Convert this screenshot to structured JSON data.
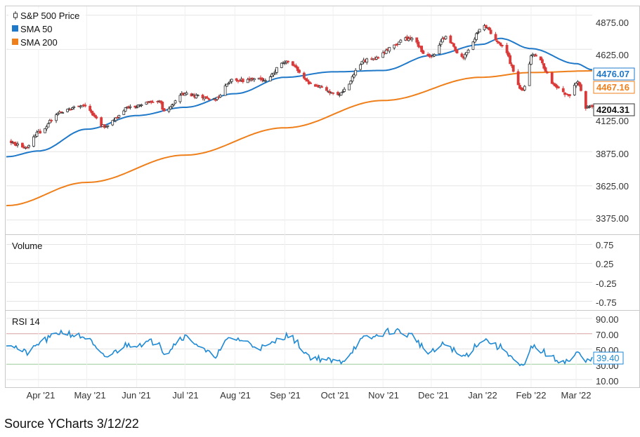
{
  "caption": "Source YCharts 3/12/22",
  "colors": {
    "up": "#ffffff",
    "down": "#d93b3b",
    "sma50": "#1f78c8",
    "sma200": "#ef7f1a",
    "rsi": "#1f8ad4",
    "grid": "#e4e4e4",
    "rsi_upper": "#d9a0a0",
    "rsi_lower": "#9ccc9c"
  },
  "chart_data": [
    {
      "type": "line",
      "panel": "price",
      "legend": {
        "placement": "top-left",
        "items": [
          {
            "label": "S&P 500 Price",
            "icon": "candlestick-icon"
          },
          {
            "label": "SMA 50",
            "color": "#1f78c8"
          },
          {
            "label": "SMA 200",
            "color": "#ef7f1a"
          }
        ]
      },
      "x_ticks": [
        "Apr '21",
        "May '21",
        "Jun '21",
        "Jul '21",
        "Aug '21",
        "Sep '21",
        "Oct '21",
        "Nov '21",
        "Dec '21",
        "Jan '22",
        "Feb '22",
        "Mar '22"
      ],
      "y_ticks": [
        "4875.00",
        "4625.00",
        "4125.00",
        "3875.00",
        "3625.00",
        "3375.00"
      ],
      "ylim": [
        3270,
        4940
      ],
      "price_anchors": [
        [
          "2021-03-12",
          3943
        ],
        [
          "2021-03-25",
          3909
        ],
        [
          "2021-04-01",
          4019
        ],
        [
          "2021-04-15",
          4170
        ],
        [
          "2021-04-29",
          4211
        ],
        [
          "2021-05-12",
          4063
        ],
        [
          "2021-05-28",
          4204
        ],
        [
          "2021-06-15",
          4246
        ],
        [
          "2021-06-18",
          4166
        ],
        [
          "2021-06-30",
          4297
        ],
        [
          "2021-07-19",
          4258
        ],
        [
          "2021-07-30",
          4395
        ],
        [
          "2021-08-19",
          4405
        ],
        [
          "2021-09-02",
          4537
        ],
        [
          "2021-09-20",
          4358
        ],
        [
          "2021-10-04",
          4300
        ],
        [
          "2021-10-22",
          4545
        ],
        [
          "2021-11-18",
          4704
        ],
        [
          "2021-11-30",
          4567
        ],
        [
          "2021-12-10",
          4712
        ],
        [
          "2021-12-20",
          4568
        ],
        [
          "2022-01-03",
          4796
        ],
        [
          "2022-01-13",
          4659
        ],
        [
          "2022-01-27",
          4327
        ],
        [
          "2022-02-02",
          4589
        ],
        [
          "2022-02-18",
          4349
        ],
        [
          "2022-02-24",
          4288
        ],
        [
          "2022-03-02",
          4386
        ],
        [
          "2022-03-07",
          4201
        ],
        [
          "2022-03-11",
          4204
        ]
      ],
      "sma50": [
        [
          "2021-03-12",
          3838
        ],
        [
          "2021-04-01",
          3880
        ],
        [
          "2021-05-01",
          4040
        ],
        [
          "2021-06-01",
          4140
        ],
        [
          "2021-07-01",
          4200
        ],
        [
          "2021-08-01",
          4300
        ],
        [
          "2021-09-01",
          4420
        ],
        [
          "2021-10-01",
          4460
        ],
        [
          "2021-11-01",
          4470
        ],
        [
          "2021-12-01",
          4580
        ],
        [
          "2022-01-01",
          4660
        ],
        [
          "2022-01-13",
          4705
        ],
        [
          "2022-02-01",
          4630
        ],
        [
          "2022-03-01",
          4520
        ],
        [
          "2022-03-11",
          4476.07
        ]
      ],
      "sma200": [
        [
          "2021-03-12",
          3480
        ],
        [
          "2021-05-01",
          3650
        ],
        [
          "2021-07-01",
          3850
        ],
        [
          "2021-09-01",
          4050
        ],
        [
          "2021-11-01",
          4250
        ],
        [
          "2022-01-01",
          4420
        ],
        [
          "2022-02-01",
          4455
        ],
        [
          "2022-03-11",
          4467.16
        ]
      ],
      "last_values": {
        "price": "4204.31",
        "sma50": "4476.07",
        "sma200": "4467.16"
      }
    },
    {
      "type": "bar",
      "panel": "volume",
      "title": "Volume",
      "y_ticks": [
        "0.75",
        "0.25",
        "-0.25",
        "-0.75"
      ],
      "ylim": [
        -1,
        1
      ],
      "values": []
    },
    {
      "type": "line",
      "panel": "rsi",
      "title": "RSI 14",
      "y_ticks": [
        "90.00",
        "70.00",
        "50.00",
        "30.00",
        "10.00"
      ],
      "ylim": [
        0,
        100
      ],
      "bands": [
        70,
        30
      ],
      "last_value": "39.40",
      "anchors": [
        [
          "2021-03-12",
          58
        ],
        [
          "2021-03-25",
          45
        ],
        [
          "2021-04-05",
          62
        ],
        [
          "2021-04-15",
          72
        ],
        [
          "2021-04-29",
          66
        ],
        [
          "2021-05-12",
          40
        ],
        [
          "2021-05-28",
          56
        ],
        [
          "2021-06-15",
          60
        ],
        [
          "2021-06-18",
          45
        ],
        [
          "2021-06-30",
          66
        ],
        [
          "2021-07-19",
          42
        ],
        [
          "2021-07-30",
          64
        ],
        [
          "2021-08-19",
          52
        ],
        [
          "2021-09-02",
          67
        ],
        [
          "2021-09-20",
          38
        ],
        [
          "2021-10-04",
          33
        ],
        [
          "2021-10-22",
          64
        ],
        [
          "2021-11-08",
          74
        ],
        [
          "2021-11-18",
          68
        ],
        [
          "2021-11-30",
          45
        ],
        [
          "2021-12-10",
          56
        ],
        [
          "2021-12-20",
          40
        ],
        [
          "2022-01-03",
          62
        ],
        [
          "2022-01-13",
          52
        ],
        [
          "2022-01-27",
          26
        ],
        [
          "2022-02-02",
          52
        ],
        [
          "2022-02-18",
          36
        ],
        [
          "2022-02-24",
          34
        ],
        [
          "2022-03-02",
          44
        ],
        [
          "2022-03-07",
          33
        ],
        [
          "2022-03-11",
          39.4
        ]
      ]
    }
  ]
}
